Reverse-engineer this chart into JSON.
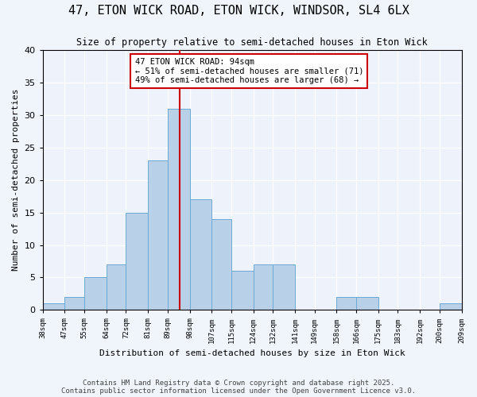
{
  "title1": "47, ETON WICK ROAD, ETON WICK, WINDSOR, SL4 6LX",
  "title2": "Size of property relative to semi-detached houses in Eton Wick",
  "xlabel": "Distribution of semi-detached houses by size in Eton Wick",
  "ylabel": "Number of semi-detached properties",
  "bin_labels": [
    "38sqm",
    "47sqm",
    "55sqm",
    "64sqm",
    "72sqm",
    "81sqm",
    "89sqm",
    "98sqm",
    "107sqm",
    "115sqm",
    "124sqm",
    "132sqm",
    "141sqm",
    "149sqm",
    "158sqm",
    "166sqm",
    "175sqm",
    "183sqm",
    "192sqm",
    "200sqm",
    "209sqm"
  ],
  "bin_edges": [
    38,
    47,
    55,
    64,
    72,
    81,
    89,
    98,
    107,
    115,
    124,
    132,
    141,
    149,
    158,
    166,
    175,
    183,
    192,
    200,
    209
  ],
  "counts": [
    1,
    2,
    5,
    7,
    15,
    23,
    31,
    17,
    14,
    6,
    7,
    7,
    0,
    0,
    2,
    2,
    0,
    0,
    0,
    1
  ],
  "bar_color": "#b8d0e8",
  "bar_edge_color": "#6aaad4",
  "property_value": 94,
  "vline_color": "#cc0000",
  "annotation_text": "47 ETON WICK ROAD: 94sqm\n← 51% of semi-detached houses are smaller (71)\n49% of semi-detached houses are larger (68) →",
  "annotation_box_color": "#ffffff",
  "annotation_box_edge_color": "#cc0000",
  "footer": "Contains HM Land Registry data © Crown copyright and database right 2025.\nContains public sector information licensed under the Open Government Licence v3.0.",
  "ylim": [
    0,
    40
  ],
  "background_color": "#f0f5fc",
  "plot_background": "#eef3fb"
}
